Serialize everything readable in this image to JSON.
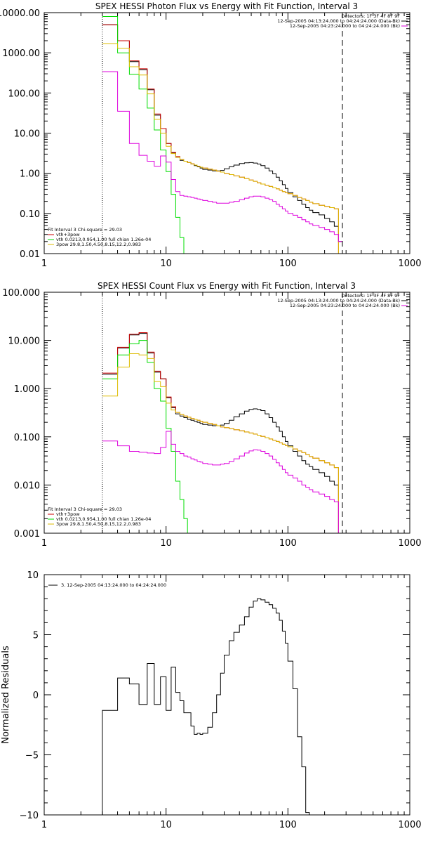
{
  "chart_data": [
    {
      "type": "line",
      "title": "SPEX HESSI Photon Flux vs Energy with Fit Function, Interval 3",
      "xscale": "log",
      "yscale": "log",
      "xlim": [
        1,
        1000
      ],
      "ylim": [
        0.01,
        10000
      ],
      "xticks": [
        "1",
        "10",
        "100",
        "1000"
      ],
      "yticks": [
        "0.01",
        "0.10",
        "1.00",
        "10.00",
        "100.00",
        "1000.00",
        "10000.00"
      ],
      "legend_topright": [
        "Detectors: 1F 3F 4F 8F 9F",
        "12-Sep-2005 04:13:24.000 to 04:24:24.000 (Data-Bk)",
        "12-Sep-2005 04:23:24.000 to 04:24:24.000 (Bk)"
      ],
      "legend_bottomleft": [
        "Fit Interval 3   Chi-square = 29.03",
        "vth+3pow",
        "vth 0.0213,0.954,1.00  full chian 1.26e-04",
        "3pow 29.8,1.50,4.50,8.15,12.2,0.983"
      ],
      "vlines": [
        {
          "x": 3,
          "style": "dotted"
        },
        {
          "x": 280,
          "style": "dashed"
        }
      ],
      "bin_edges": [
        3,
        4,
        5,
        6,
        7,
        8,
        9,
        10,
        11,
        12,
        13,
        14,
        15,
        16,
        17,
        18,
        19,
        20,
        22,
        24,
        26,
        28,
        30,
        33,
        36,
        40,
        44,
        48,
        52,
        56,
        60,
        65,
        70,
        75,
        80,
        85,
        90,
        95,
        100,
        110,
        120,
        130,
        140,
        150,
        160,
        180,
        200,
        220,
        240,
        260,
        280
      ],
      "series": [
        {
          "name": "Data-Bk",
          "color": "#000000",
          "values": [
            5000,
            2000,
            600,
            380,
            120,
            28,
            13,
            5.5,
            3.2,
            2.5,
            2.1,
            2.0,
            1.85,
            1.7,
            1.55,
            1.45,
            1.35,
            1.25,
            1.2,
            1.15,
            1.15,
            1.18,
            1.3,
            1.45,
            1.6,
            1.75,
            1.82,
            1.85,
            1.8,
            1.7,
            1.55,
            1.35,
            1.15,
            0.97,
            0.8,
            0.65,
            0.52,
            0.42,
            0.33,
            0.26,
            0.21,
            0.17,
            0.14,
            0.12,
            0.105,
            0.092,
            0.075,
            0.062,
            0.048,
            0.02
          ]
        },
        {
          "name": "vth+3pow",
          "color": "#cc0000",
          "values": [
            5000,
            2000,
            630,
            400,
            125,
            30,
            13,
            5.5,
            3.3,
            2.6,
            2.2,
            2.0,
            1.85,
            1.72,
            1.6,
            1.5,
            1.42,
            1.35,
            1.27,
            1.2,
            1.13,
            1.07,
            1.0,
            0.93,
            0.86,
            0.8,
            0.74,
            0.68,
            0.63,
            0.58,
            0.54,
            0.5,
            0.47,
            0.44,
            0.41,
            0.38,
            0.35,
            0.33,
            0.31,
            0.28,
            0.25,
            0.23,
            0.21,
            0.19,
            0.175,
            0.16,
            0.15,
            0.14,
            0.13,
            0.01
          ]
        },
        {
          "name": "vth",
          "color": "#00dd00",
          "values": [
            8000,
            1000,
            290,
            125,
            42,
            12,
            3.8,
            1.1,
            0.3,
            0.08,
            0.025,
            0.01,
            0.01,
            0.01,
            0.01,
            0.01,
            0.01,
            0.01,
            0.01,
            0.01,
            0.01,
            0.01,
            0.01,
            0.01,
            0.01,
            0.01,
            0.01,
            0.01,
            0.01,
            0.01,
            0.01,
            0.01,
            0.01,
            0.01,
            0.01,
            0.01,
            0.01,
            0.01,
            0.01,
            0.01,
            0.01,
            0.01,
            0.01,
            0.01,
            0.01,
            0.01,
            0.01,
            0.01,
            0.01,
            0.01
          ]
        },
        {
          "name": "3pow",
          "color": "#ddbb00",
          "values": [
            1700,
            1300,
            450,
            280,
            95,
            22,
            10,
            4.7,
            3.1,
            2.5,
            2.2,
            2.0,
            1.85,
            1.72,
            1.6,
            1.5,
            1.42,
            1.35,
            1.27,
            1.2,
            1.13,
            1.07,
            1.0,
            0.93,
            0.86,
            0.8,
            0.74,
            0.68,
            0.63,
            0.58,
            0.54,
            0.5,
            0.47,
            0.44,
            0.41,
            0.38,
            0.35,
            0.33,
            0.31,
            0.28,
            0.25,
            0.23,
            0.21,
            0.19,
            0.175,
            0.16,
            0.15,
            0.14,
            0.13,
            0.01
          ]
        },
        {
          "name": "Bk",
          "color": "#dd00dd",
          "values": [
            340,
            35,
            5.5,
            2.8,
            2.0,
            1.5,
            2.7,
            1.9,
            0.7,
            0.35,
            0.28,
            0.27,
            0.26,
            0.25,
            0.24,
            0.23,
            0.22,
            0.21,
            0.2,
            0.19,
            0.18,
            0.18,
            0.18,
            0.19,
            0.2,
            0.22,
            0.24,
            0.26,
            0.27,
            0.27,
            0.26,
            0.24,
            0.22,
            0.2,
            0.17,
            0.15,
            0.13,
            0.115,
            0.1,
            0.09,
            0.08,
            0.07,
            0.062,
            0.055,
            0.05,
            0.045,
            0.04,
            0.035,
            0.03,
            0.02
          ]
        }
      ]
    },
    {
      "type": "line",
      "title": "SPEX HESSI Count Flux vs Energy with Fit Function, Interval 3",
      "xscale": "log",
      "yscale": "log",
      "xlim": [
        1,
        1000
      ],
      "ylim": [
        0.001,
        100
      ],
      "xticks": [
        "1",
        "10",
        "100",
        "1000"
      ],
      "yticks": [
        "0.001",
        "0.010",
        "0.100",
        "1.000",
        "10.000",
        "100.000"
      ],
      "legend_topright": [
        "Detectors: 1F 3F 4F 8F 9F",
        "12-Sep-2005 04:13:24.000 to 04:24:24.000 (Data-Bk)",
        "12-Sep-2005 04:23:24.000 to 04:24:24.000 (Bk)"
      ],
      "legend_bottomleft": [
        "Fit Interval 3   Chi-square = 29.03",
        "vth+3pow",
        "vth 0.0213,0.954,1.00  full chian 1.26e-04",
        "3pow 29.8,1.50,4.50,8.15,12.2,0.983"
      ],
      "vlines": [
        {
          "x": 3,
          "style": "dotted"
        },
        {
          "x": 280,
          "style": "dashed"
        }
      ],
      "bin_edges": [
        3,
        4,
        5,
        6,
        7,
        8,
        9,
        10,
        11,
        12,
        13,
        14,
        15,
        16,
        17,
        18,
        19,
        20,
        22,
        24,
        26,
        28,
        30,
        33,
        36,
        40,
        44,
        48,
        52,
        56,
        60,
        65,
        70,
        75,
        80,
        85,
        90,
        95,
        100,
        110,
        120,
        130,
        140,
        150,
        160,
        180,
        200,
        220,
        240,
        260,
        280
      ],
      "series": [
        {
          "name": "Data-Bk",
          "color": "#000000",
          "values": [
            2.0,
            7.0,
            13.0,
            14.0,
            5.5,
            2.2,
            1.6,
            0.65,
            0.4,
            0.3,
            0.27,
            0.25,
            0.23,
            0.22,
            0.21,
            0.2,
            0.19,
            0.18,
            0.175,
            0.17,
            0.17,
            0.175,
            0.19,
            0.22,
            0.26,
            0.3,
            0.34,
            0.37,
            0.38,
            0.37,
            0.35,
            0.3,
            0.25,
            0.2,
            0.16,
            0.13,
            0.1,
            0.08,
            0.065,
            0.05,
            0.04,
            0.032,
            0.027,
            0.024,
            0.021,
            0.018,
            0.015,
            0.012,
            0.01,
            0.001
          ]
        },
        {
          "name": "vth+3pow",
          "color": "#cc0000",
          "values": [
            2.1,
            7.2,
            13.5,
            14.5,
            5.7,
            2.3,
            1.6,
            0.67,
            0.42,
            0.32,
            0.29,
            0.27,
            0.255,
            0.24,
            0.23,
            0.22,
            0.21,
            0.2,
            0.19,
            0.18,
            0.17,
            0.16,
            0.155,
            0.148,
            0.14,
            0.133,
            0.126,
            0.12,
            0.114,
            0.108,
            0.102,
            0.096,
            0.09,
            0.085,
            0.08,
            0.075,
            0.07,
            0.066,
            0.062,
            0.056,
            0.051,
            0.047,
            0.043,
            0.039,
            0.036,
            0.032,
            0.029,
            0.026,
            0.023,
            0.001
          ]
        },
        {
          "name": "vth",
          "color": "#00dd00",
          "values": [
            1.6,
            5.0,
            8.5,
            10.0,
            3.5,
            1.0,
            0.55,
            0.15,
            0.05,
            0.012,
            0.005,
            0.002,
            0.001,
            0.001,
            0.001,
            0.001,
            0.001,
            0.001,
            0.001,
            0.001,
            0.001,
            0.001,
            0.001,
            0.001,
            0.001,
            0.001,
            0.001,
            0.001,
            0.001,
            0.001,
            0.001,
            0.001,
            0.001,
            0.001,
            0.001,
            0.001,
            0.001,
            0.001,
            0.001,
            0.001,
            0.001,
            0.001,
            0.001,
            0.001,
            0.001,
            0.001,
            0.001,
            0.001,
            0.001,
            0.001
          ]
        },
        {
          "name": "3pow",
          "color": "#ddbb00",
          "values": [
            0.7,
            2.8,
            5.3,
            5.0,
            4.2,
            1.4,
            1.1,
            0.5,
            0.36,
            0.32,
            0.29,
            0.27,
            0.255,
            0.24,
            0.23,
            0.22,
            0.21,
            0.2,
            0.19,
            0.18,
            0.17,
            0.16,
            0.155,
            0.148,
            0.14,
            0.133,
            0.126,
            0.12,
            0.114,
            0.108,
            0.102,
            0.096,
            0.09,
            0.085,
            0.08,
            0.075,
            0.07,
            0.066,
            0.062,
            0.056,
            0.051,
            0.047,
            0.043,
            0.039,
            0.036,
            0.032,
            0.029,
            0.026,
            0.023,
            0.001
          ]
        },
        {
          "name": "Bk",
          "color": "#dd00dd",
          "values": [
            0.082,
            0.065,
            0.05,
            0.048,
            0.046,
            0.045,
            0.06,
            0.13,
            0.07,
            0.05,
            0.045,
            0.04,
            0.038,
            0.035,
            0.033,
            0.031,
            0.03,
            0.028,
            0.027,
            0.026,
            0.026,
            0.027,
            0.028,
            0.031,
            0.035,
            0.04,
            0.046,
            0.051,
            0.054,
            0.053,
            0.05,
            0.045,
            0.04,
            0.034,
            0.029,
            0.025,
            0.021,
            0.018,
            0.016,
            0.014,
            0.012,
            0.01,
            0.009,
            0.008,
            0.0072,
            0.0065,
            0.0058,
            0.005,
            0.0045,
            0.001
          ]
        }
      ]
    },
    {
      "type": "line",
      "title": "",
      "xscale": "log",
      "yscale": "linear",
      "xlim": [
        1,
        1000
      ],
      "ylim": [
        -10,
        10
      ],
      "ylabel": "Normalized Residuals",
      "xticks": [
        "1",
        "10",
        "100",
        "1000"
      ],
      "yticks": [
        "-10",
        "-5",
        "0",
        "5",
        "10"
      ],
      "legend": [
        "3. 12-Sep-2005 04:13:24.000 to 04:24:24.000"
      ],
      "bin_edges": [
        3,
        4,
        5,
        6,
        7,
        8,
        9,
        10,
        11,
        12,
        13,
        14,
        15,
        16,
        17,
        18,
        19,
        20,
        22,
        24,
        26,
        28,
        30,
        33,
        36,
        40,
        44,
        48,
        52,
        56,
        60,
        65,
        70,
        75,
        80,
        85,
        90,
        95,
        100,
        110,
        120,
        130,
        140,
        150,
        160,
        180,
        200,
        220,
        240,
        260,
        280
      ],
      "series": [
        {
          "name": "3. 12-Sep-2005 04:13:24.000 to 04:24:24.000",
          "color": "#000000",
          "values": [
            -1.3,
            1.4,
            0.9,
            -0.8,
            2.6,
            -0.8,
            1.5,
            -1.3,
            2.3,
            0.2,
            -0.5,
            -1.5,
            -1.5,
            -2.6,
            -3.3,
            -3.2,
            -3.3,
            -3.2,
            -2.7,
            -1.5,
            0.0,
            1.8,
            3.3,
            4.5,
            5.2,
            5.8,
            6.5,
            7.3,
            7.8,
            8.0,
            7.9,
            7.7,
            7.5,
            7.2,
            6.8,
            6.2,
            5.3,
            4.3,
            2.8,
            0.5,
            -3.5,
            -6.0,
            -9.8,
            -10.2,
            -10.3,
            -10.3,
            -10.3,
            -10.3,
            -10.3,
            -10.3
          ]
        }
      ]
    }
  ]
}
